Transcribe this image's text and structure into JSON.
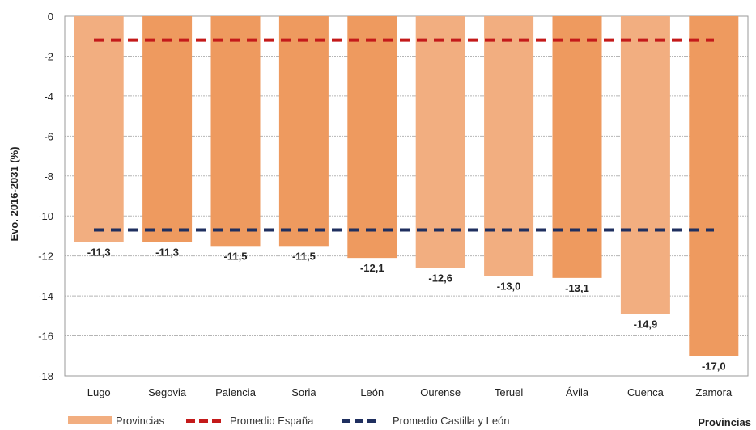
{
  "chart_data": {
    "type": "bar",
    "ylabel": "Evo. 2016-2031 (%)",
    "xlabel": "Provincias",
    "ylim": [
      -18,
      0
    ],
    "yticks": [
      0,
      -2,
      -4,
      -6,
      -8,
      -10,
      -12,
      -14,
      -16,
      -18
    ],
    "categories": [
      "Lugo",
      "Segovia",
      "Palencia",
      "Soria",
      "León",
      "Ourense",
      "Teruel",
      "Ávila",
      "Cuenca",
      "Zamora"
    ],
    "series": [
      {
        "name": "Provincias",
        "values": [
          -11.3,
          -11.3,
          -11.5,
          -11.5,
          -12.1,
          -12.6,
          -13.0,
          -13.1,
          -14.9,
          -17.0
        ],
        "labels": [
          "-11,3",
          "-11,3",
          "-11,5",
          "-11,5",
          "-12,1",
          "-12,6",
          "-13,0",
          "-13,1",
          "-14,9",
          "-17,0"
        ],
        "colors": [
          "#f2ae80",
          "#ee9a5f",
          "#ee9a5f",
          "#ee9a5f",
          "#ee9a5f",
          "#f2ae80",
          "#f2ae80",
          "#ee9a5f",
          "#f2ae80",
          "#ee9a5f"
        ]
      }
    ],
    "reference_lines": [
      {
        "name": "Promedio España",
        "value": -1.2,
        "color": "#c41a1a"
      },
      {
        "name": "Promedio Castilla y León",
        "value": -10.7,
        "color": "#1f2f5f"
      }
    ],
    "grid": true,
    "legend": "bottom"
  }
}
